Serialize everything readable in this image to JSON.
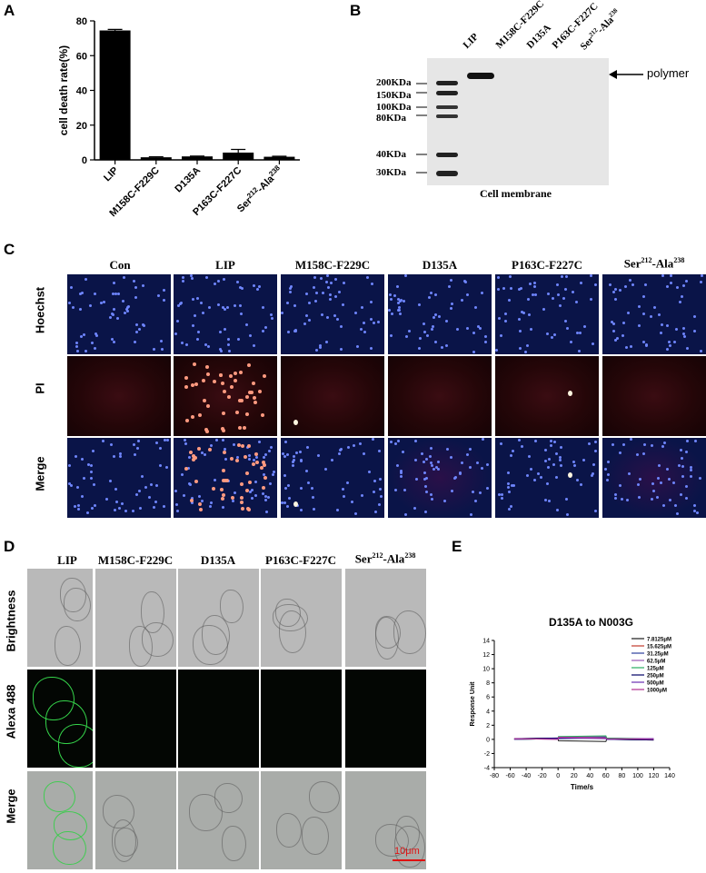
{
  "panels": {
    "A": {
      "label": "A"
    },
    "B": {
      "label": "B"
    },
    "C": {
      "label": "C"
    },
    "D": {
      "label": "D"
    },
    "E": {
      "label": "E"
    }
  },
  "chart_data": [
    {
      "panel": "A",
      "type": "bar",
      "categories": [
        "LIP",
        "M158C-F229C",
        "D135A",
        "P163C-F227C",
        "Ser212-Ala238"
      ],
      "values": [
        74.5,
        1.5,
        2.0,
        4.2,
        1.8
      ],
      "errors": [
        0.6,
        0.3,
        0.2,
        1.8,
        0.3
      ],
      "ylabel": "cell death rate(%)",
      "ylim": [
        0,
        80
      ],
      "yticks": [
        0,
        20,
        40,
        60,
        80
      ],
      "bar_color": "#000000"
    },
    {
      "panel": "E",
      "type": "line",
      "title": "D135A to N003G",
      "xlabel": "Time/s",
      "ylabel": "Response Unit",
      "xlim": [
        -80,
        140
      ],
      "ylim": [
        -4,
        14
      ],
      "xticks": [
        -80,
        -60,
        -40,
        -20,
        0,
        20,
        40,
        60,
        80,
        100,
        120,
        140
      ],
      "yticks": [
        -4,
        -2,
        0,
        2,
        4,
        6,
        8,
        10,
        12,
        14
      ],
      "legend_position": "top-right",
      "series": [
        {
          "name": "7.8125μM",
          "color": "#1a1a1a",
          "x": [
            -55,
            0,
            0.5,
            60,
            61,
            120
          ],
          "y": [
            0.0,
            0.1,
            -0.2,
            -0.3,
            0.0,
            -0.1
          ]
        },
        {
          "name": "15.625μM",
          "color": "#c0392b",
          "x": [
            -55,
            0,
            0.5,
            60,
            61,
            120
          ],
          "y": [
            0.1,
            0.2,
            0.3,
            0.4,
            0.1,
            0.0
          ]
        },
        {
          "name": "31.25μM",
          "color": "#2c3e9c",
          "x": [
            -55,
            0,
            0.5,
            60,
            61,
            120
          ],
          "y": [
            0.0,
            0.1,
            0.2,
            0.3,
            0.1,
            0.1
          ]
        },
        {
          "name": "62.5μM",
          "color": "#9b59b6",
          "x": [
            -55,
            0,
            0.5,
            60,
            61,
            120
          ],
          "y": [
            0.1,
            0.0,
            0.3,
            0.4,
            0.2,
            0.1
          ]
        },
        {
          "name": "125μM",
          "color": "#27ae60",
          "x": [
            -55,
            0,
            0.5,
            60,
            61,
            120
          ],
          "y": [
            0.0,
            0.1,
            0.4,
            0.5,
            0.2,
            0.0
          ]
        },
        {
          "name": "250μM",
          "color": "#000066",
          "x": [
            -55,
            0,
            0.5,
            60,
            61,
            120
          ],
          "y": [
            0.1,
            0.2,
            0.1,
            0.2,
            0.0,
            -0.1
          ]
        },
        {
          "name": "500μM",
          "color": "#6c2db0",
          "x": [
            -55,
            0,
            0.5,
            60,
            61,
            120
          ],
          "y": [
            0.0,
            0.1,
            0.2,
            0.1,
            0.0,
            0.1
          ]
        },
        {
          "name": "1000μM",
          "color": "#b03090",
          "x": [
            -55,
            0,
            0.5,
            60,
            61,
            120
          ],
          "y": [
            0.1,
            0.0,
            0.3,
            0.2,
            0.1,
            0.0
          ]
        }
      ]
    }
  ],
  "panel_a": {
    "tick_labels": [
      "LIP",
      "M158C-F229C",
      "D135A",
      "P163C-F227C"
    ],
    "last_tick": {
      "prefix": "Ser",
      "sup1": "212",
      "mid": "-Ala",
      "sup2": "238"
    }
  },
  "panel_b": {
    "lane_labels": [
      "LIP",
      "M158C-F229C",
      "D135A",
      "P163C-F227C"
    ],
    "last_lane": {
      "prefix": "Ser",
      "sup1": "212",
      "mid": "-Ala",
      "sup2": "238"
    },
    "markers": [
      "200KDa",
      "150KDa",
      "100KDa",
      "80KDa",
      "40KDa",
      "30KDa"
    ],
    "arrow_label": "polymer",
    "caption": "Cell membrane"
  },
  "panel_c": {
    "columns": [
      "Con",
      "LIP",
      "M158C-F229C",
      "D135A",
      "P163C-F227C"
    ],
    "last_column": {
      "prefix": "Ser",
      "sup1": "212",
      "mid": "-Ala",
      "sup2": "238"
    },
    "rows": [
      "Hoechst",
      "PI",
      "Merge"
    ]
  },
  "panel_d": {
    "columns": [
      "LIP",
      "M158C-F229C",
      "D135A",
      "P163C-F227C"
    ],
    "last_column": {
      "prefix": "Ser",
      "sup1": "212",
      "mid": "-Ala",
      "sup2": "238"
    },
    "rows": [
      "Brightness",
      "Alexa 488",
      "Merge"
    ],
    "scale_bar": "10μm"
  }
}
